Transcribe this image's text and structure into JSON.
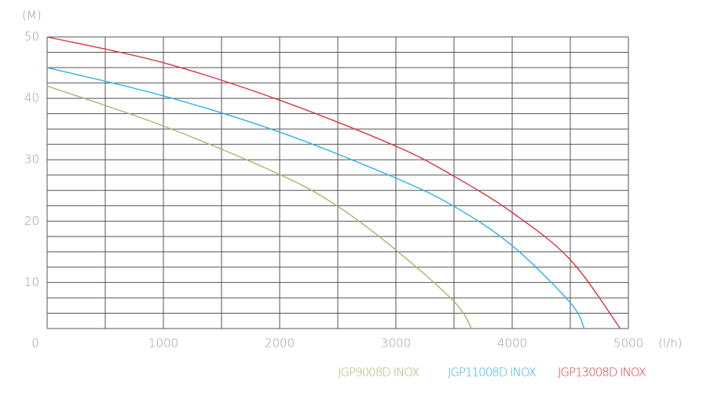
{
  "chart_data": {
    "type": "line",
    "y_unit": "(M)",
    "x_unit": "(l/h)",
    "xlim": [
      0,
      5000
    ],
    "ylim": [
      2.5,
      50
    ],
    "xticks": [
      0,
      1000,
      2000,
      3000,
      4000,
      5000
    ],
    "yticks": [
      10,
      20,
      30,
      40,
      50
    ],
    "minor_xticks": [
      500,
      1500,
      2500,
      3500,
      4500
    ],
    "minor_yticks": [
      2.5,
      5,
      7.5,
      12.5,
      15,
      17.5,
      22.5,
      25,
      27.5,
      32.5,
      35,
      37.5,
      42.5,
      45,
      47.5
    ],
    "grid": true,
    "series": [
      {
        "name": "JGP9008D INOX",
        "color": "#9cbd6c",
        "x": [
          0,
          1000,
          2000,
          2500,
          3000,
          3500,
          3650
        ],
        "values": [
          42,
          35.5,
          27.6,
          22.4,
          15.3,
          6.9,
          2.5
        ]
      },
      {
        "name": "JGP11008D INOX",
        "color": "#2fb2e2",
        "x": [
          0,
          1000,
          2000,
          3000,
          3500,
          4000,
          4500,
          4620
        ],
        "values": [
          45,
          40.4,
          34.5,
          27,
          22.4,
          16,
          6.7,
          2.5
        ]
      },
      {
        "name": "JGP13008D INOX",
        "color": "#d9343f",
        "x": [
          0,
          1000,
          2000,
          3000,
          3500,
          4000,
          4500,
          4930
        ],
        "values": [
          50,
          45.8,
          39.7,
          32.2,
          27.3,
          21.4,
          13.7,
          2.5
        ]
      }
    ]
  }
}
